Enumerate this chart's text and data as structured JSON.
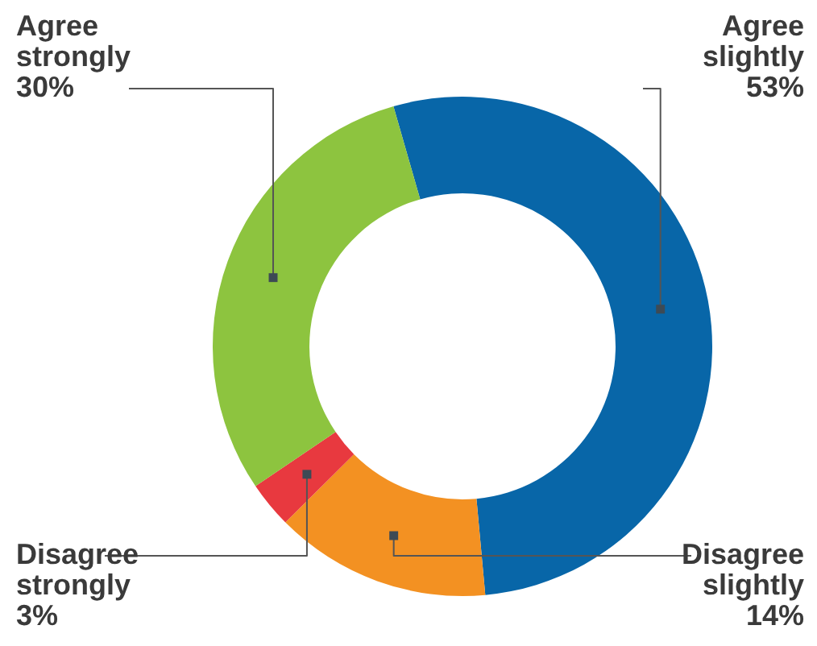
{
  "chart_data": {
    "type": "donut",
    "categories": [
      "Agree slightly",
      "Disagree slightly",
      "Disagree strongly",
      "Agree strongly"
    ],
    "values": [
      53,
      14,
      3,
      30
    ],
    "colors": [
      "#0866a8",
      "#f39122",
      "#e8393f",
      "#8dc43f"
    ],
    "value_labels": [
      "53%",
      "14%",
      "3%",
      "30%"
    ]
  }
}
